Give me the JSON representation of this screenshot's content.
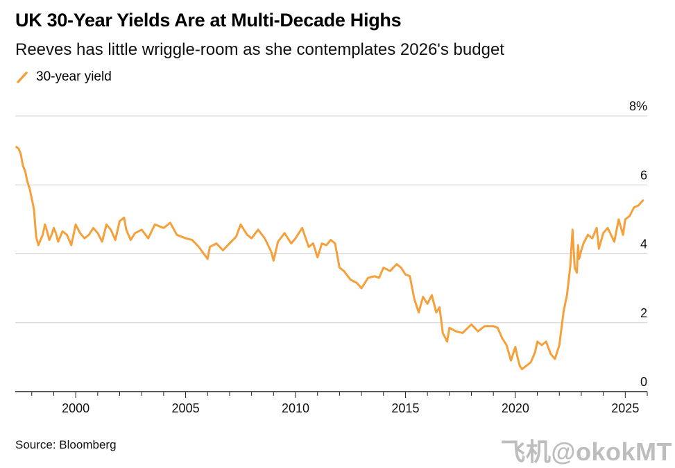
{
  "chart_data": {
    "type": "line",
    "title": "UK 30-Year Yields Are at Multi-Decade Highs",
    "subtitle": "Reeves has little wriggle-room as she contemplates 2026's budget",
    "legend": [
      "30-year yield"
    ],
    "legend_position": "top-left",
    "ylabel": "",
    "xlabel": "",
    "ylim": [
      0,
      8
    ],
    "y_ticks": [
      0,
      2,
      4,
      6,
      8
    ],
    "y_tick_labels": [
      "0",
      "2",
      "4",
      "6",
      "8%"
    ],
    "x_ticks": [
      2000,
      2005,
      2010,
      2015,
      2020,
      2025
    ],
    "xlim": [
      1997.25,
      2026.0
    ],
    "grid": "horizontal",
    "series": [
      {
        "name": "30-year yield",
        "color": "#F5A03B",
        "x": [
          1997.3,
          1997.4,
          1997.5,
          1997.6,
          1997.7,
          1997.8,
          1997.9,
          1998.0,
          1998.1,
          1998.2,
          1998.3,
          1998.5,
          1998.6,
          1998.7,
          1998.8,
          1998.9,
          1999.0,
          1999.1,
          1999.2,
          1999.4,
          1999.6,
          1999.8,
          2000.0,
          2000.2,
          2000.4,
          2000.6,
          2000.8,
          2001.0,
          2001.2,
          2001.4,
          2001.6,
          2001.8,
          2002.0,
          2002.2,
          2002.3,
          2002.5,
          2002.7,
          2003.0,
          2003.3,
          2003.6,
          2004.0,
          2004.3,
          2004.6,
          2005.0,
          2005.3,
          2005.6,
          2006.0,
          2006.1,
          2006.4,
          2006.7,
          2007.0,
          2007.3,
          2007.5,
          2007.8,
          2008.0,
          2008.3,
          2008.6,
          2008.9,
          2009.0,
          2009.2,
          2009.5,
          2009.8,
          2010.0,
          2010.3,
          2010.6,
          2010.8,
          2011.0,
          2011.2,
          2011.4,
          2011.6,
          2011.8,
          2012.0,
          2012.2,
          2012.5,
          2012.8,
          2013.0,
          2013.3,
          2013.6,
          2013.8,
          2014.0,
          2014.3,
          2014.6,
          2014.8,
          2015.0,
          2015.2,
          2015.4,
          2015.6,
          2015.8,
          2016.0,
          2016.2,
          2016.4,
          2016.55,
          2016.7,
          2016.9,
          2017.0,
          2017.3,
          2017.6,
          2018.0,
          2018.3,
          2018.6,
          2019.0,
          2019.2,
          2019.4,
          2019.6,
          2019.8,
          2020.0,
          2020.1,
          2020.2,
          2020.3,
          2020.5,
          2020.7,
          2020.9,
          2021.0,
          2021.2,
          2021.4,
          2021.6,
          2021.8,
          2022.0,
          2022.1,
          2022.2,
          2022.35,
          2022.5,
          2022.6,
          2022.7,
          2022.8,
          2022.85,
          2022.9,
          2023.0,
          2023.1,
          2023.3,
          2023.5,
          2023.7,
          2023.8,
          2024.0,
          2024.2,
          2024.5,
          2024.7,
          2024.9,
          2025.0,
          2025.2,
          2025.4,
          2025.6,
          2025.8
        ],
        "values": [
          7.1,
          7.05,
          6.9,
          6.55,
          6.4,
          6.1,
          5.9,
          5.6,
          5.3,
          4.5,
          4.25,
          4.55,
          4.85,
          4.65,
          4.4,
          4.55,
          4.75,
          4.6,
          4.35,
          4.65,
          4.55,
          4.25,
          4.85,
          4.6,
          4.45,
          4.55,
          4.75,
          4.6,
          4.35,
          4.85,
          4.7,
          4.4,
          4.95,
          5.05,
          4.7,
          4.4,
          4.6,
          4.7,
          4.45,
          4.85,
          4.75,
          4.9,
          4.55,
          4.45,
          4.4,
          4.2,
          3.85,
          4.2,
          4.3,
          4.1,
          4.3,
          4.5,
          4.85,
          4.55,
          4.45,
          4.7,
          4.45,
          4.05,
          3.8,
          4.35,
          4.6,
          4.3,
          4.45,
          4.75,
          4.2,
          4.3,
          3.9,
          4.3,
          4.25,
          4.4,
          4.3,
          3.6,
          3.5,
          3.25,
          3.15,
          3.0,
          3.3,
          3.35,
          3.3,
          3.6,
          3.5,
          3.7,
          3.6,
          3.4,
          3.35,
          2.7,
          2.3,
          2.75,
          2.55,
          2.8,
          2.3,
          2.45,
          1.7,
          1.45,
          1.85,
          1.75,
          1.7,
          1.95,
          1.75,
          1.9,
          1.9,
          1.85,
          1.55,
          1.35,
          0.9,
          1.3,
          1.0,
          0.75,
          0.65,
          0.75,
          0.85,
          1.15,
          1.45,
          1.35,
          1.45,
          1.1,
          0.95,
          1.35,
          1.85,
          2.35,
          2.8,
          3.65,
          4.7,
          3.6,
          3.45,
          4.25,
          3.85,
          4.1,
          4.3,
          4.55,
          4.45,
          4.75,
          4.15,
          4.6,
          4.75,
          4.35,
          5.0,
          4.55,
          5.0,
          5.1,
          5.35,
          5.4,
          5.55
        ]
      }
    ]
  },
  "source": "Source: Bloomberg",
  "watermark": "飞机@okokMT"
}
